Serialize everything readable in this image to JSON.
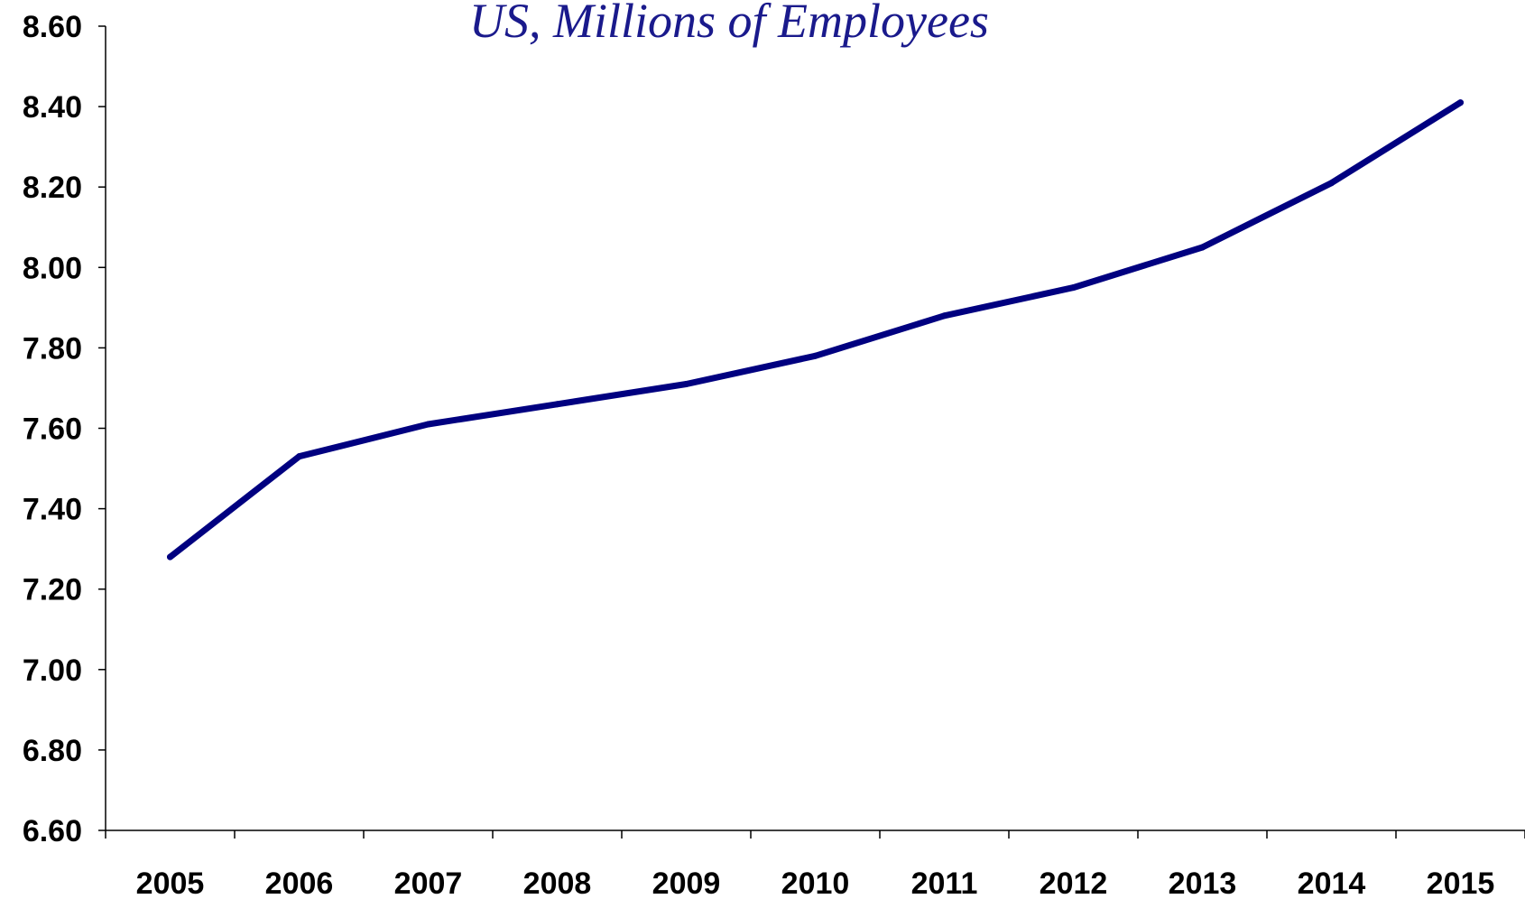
{
  "colors": {
    "line": "#000080",
    "title": "#1a1a8c",
    "axis": "#000000"
  },
  "chart_data": {
    "type": "line",
    "title": "US, Millions of Employees",
    "xlabel": "",
    "ylabel": "",
    "categories": [
      "2005",
      "2006",
      "2007",
      "2008",
      "2009",
      "2010",
      "2011",
      "2012",
      "2013",
      "2014",
      "2015"
    ],
    "series": [
      {
        "values": [
          7.28,
          7.53,
          7.61,
          7.66,
          7.71,
          7.78,
          7.88,
          7.95,
          8.05,
          8.21,
          8.41
        ]
      }
    ],
    "ylim": [
      6.6,
      8.6
    ],
    "yticks": [
      "6.60",
      "6.80",
      "7.00",
      "7.20",
      "7.40",
      "7.60",
      "7.80",
      "8.00",
      "8.20",
      "8.40",
      "8.60"
    ],
    "grid": false,
    "legend": "none"
  }
}
